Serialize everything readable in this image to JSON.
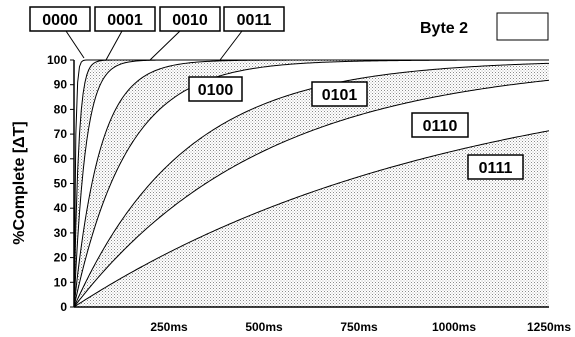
{
  "chart_data": {
    "type": "area",
    "title": "",
    "xlabel": "",
    "ylabel": "%Complete [ΔT]",
    "xlim": [
      0,
      1250
    ],
    "ylim": [
      0,
      100
    ],
    "x_ticks": [
      "250ms",
      "500ms",
      "750ms",
      "1000ms",
      "1250ms"
    ],
    "x_tick_values": [
      250,
      500,
      750,
      1000,
      1250
    ],
    "y_ticks": [
      0,
      10,
      20,
      30,
      40,
      50,
      60,
      70,
      80,
      90,
      100
    ],
    "grid": false,
    "legend": {
      "label": "Byte 2",
      "placement": "top-right"
    },
    "curve_shape": "exponential approach to 100%",
    "series": [
      {
        "name": "0000",
        "time_constant_ms": 4,
        "fill": "white"
      },
      {
        "name": "0001",
        "time_constant_ms": 12,
        "fill": "stipple"
      },
      {
        "name": "0010",
        "time_constant_ms": 30,
        "fill": "white"
      },
      {
        "name": "0011",
        "time_constant_ms": 68,
        "fill": "stipple"
      },
      {
        "name": "0100",
        "time_constant_ms": 140,
        "fill": "white"
      },
      {
        "name": "0101",
        "time_constant_ms": 290,
        "fill": "stipple"
      },
      {
        "name": "0110",
        "time_constant_ms": 500,
        "fill": "white"
      },
      {
        "name": "0111",
        "time_constant_ms": 1000,
        "fill": "stipple"
      }
    ],
    "colors": {
      "stipple": "#d9d9d9",
      "line": "#000000",
      "background": "#ffffff"
    }
  }
}
